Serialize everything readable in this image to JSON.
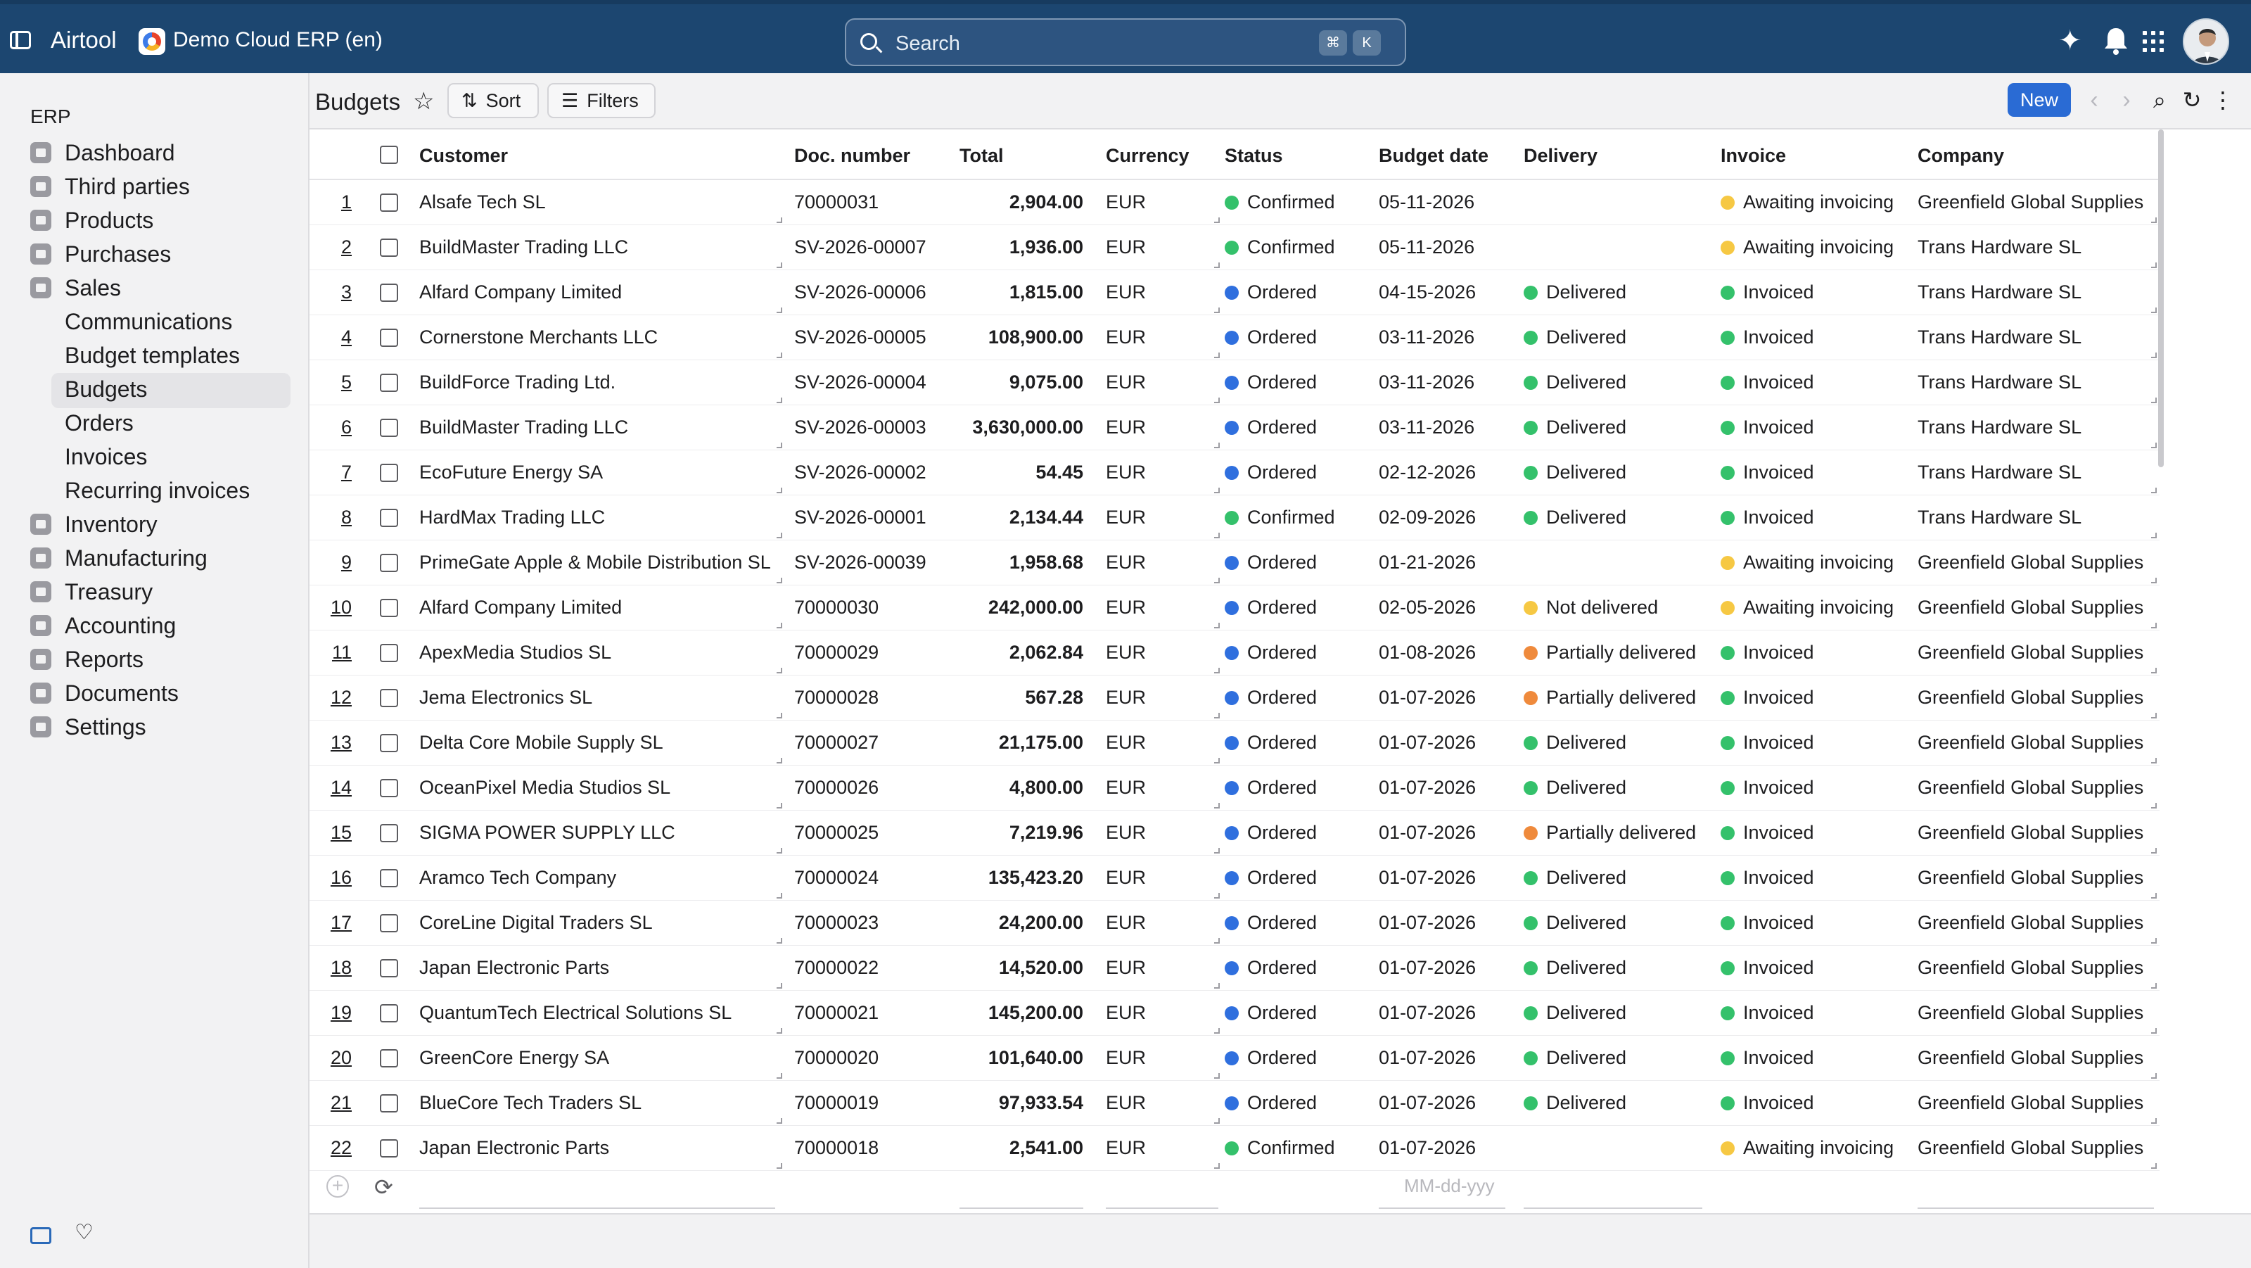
{
  "topbar": {
    "app_name": "Airtool",
    "company": "Demo Cloud ERP (en)",
    "search_placeholder": "Search",
    "shortcut_key1": "⌘",
    "shortcut_key2": "K"
  },
  "sidebar": {
    "section": "ERP",
    "items": [
      {
        "label": "Dashboard",
        "icon": "dashboard-icon"
      },
      {
        "label": "Third parties",
        "icon": "user-icon"
      },
      {
        "label": "Products",
        "icon": "box-icon"
      },
      {
        "label": "Purchases",
        "icon": "cart-icon"
      },
      {
        "label": "Sales",
        "icon": "sales-icon"
      }
    ],
    "sales_subitems": [
      "Communications",
      "Budget templates",
      "Budgets",
      "Orders",
      "Invoices",
      "Recurring invoices"
    ],
    "items_after": [
      {
        "label": "Inventory",
        "icon": "inventory-icon"
      },
      {
        "label": "Manufacturing",
        "icon": "factory-icon"
      },
      {
        "label": "Treasury",
        "icon": "bank-icon"
      },
      {
        "label": "Accounting",
        "icon": "calculator-icon"
      },
      {
        "label": "Reports",
        "icon": "report-icon"
      },
      {
        "label": "Documents",
        "icon": "document-icon"
      },
      {
        "label": "Settings",
        "icon": "gear-icon"
      }
    ],
    "active_item": "Budgets"
  },
  "toolbar": {
    "title": "Budgets",
    "sort_label": "Sort",
    "filters_label": "Filters",
    "new_label": "New"
  },
  "table": {
    "columns": [
      "Customer",
      "Doc. number",
      "Total",
      "Currency",
      "Status",
      "Budget date",
      "Delivery",
      "Invoice",
      "Company"
    ],
    "rows": [
      {
        "n": "1",
        "customer": "Alsafe Tech SL",
        "doc": "70000031",
        "total": "2,904.00",
        "currency": "EUR",
        "status": "Confirmed",
        "date": "05-11-2026",
        "delivery": "",
        "invoice": "Awaiting invoicing",
        "company": "Greenfield Global Supplies"
      },
      {
        "n": "2",
        "customer": "BuildMaster Trading LLC",
        "doc": "SV-2026-00007",
        "total": "1,936.00",
        "currency": "EUR",
        "status": "Confirmed",
        "date": "05-11-2026",
        "delivery": "",
        "invoice": "Awaiting invoicing",
        "company": "Trans Hardware SL"
      },
      {
        "n": "3",
        "customer": "Alfard Company Limited",
        "doc": "SV-2026-00006",
        "total": "1,815.00",
        "currency": "EUR",
        "status": "Ordered",
        "date": "04-15-2026",
        "delivery": "Delivered",
        "invoice": "Invoiced",
        "company": "Trans Hardware SL"
      },
      {
        "n": "4",
        "customer": "Cornerstone Merchants LLC",
        "doc": "SV-2026-00005",
        "total": "108,900.00",
        "currency": "EUR",
        "status": "Ordered",
        "date": "03-11-2026",
        "delivery": "Delivered",
        "invoice": "Invoiced",
        "company": "Trans Hardware SL"
      },
      {
        "n": "5",
        "customer": "BuildForce Trading Ltd.",
        "doc": "SV-2026-00004",
        "total": "9,075.00",
        "currency": "EUR",
        "status": "Ordered",
        "date": "03-11-2026",
        "delivery": "Delivered",
        "invoice": "Invoiced",
        "company": "Trans Hardware SL"
      },
      {
        "n": "6",
        "customer": "BuildMaster Trading LLC",
        "doc": "SV-2026-00003",
        "total": "3,630,000.00",
        "currency": "EUR",
        "status": "Ordered",
        "date": "03-11-2026",
        "delivery": "Delivered",
        "invoice": "Invoiced",
        "company": "Trans Hardware SL"
      },
      {
        "n": "7",
        "customer": "EcoFuture Energy SA",
        "doc": "SV-2026-00002",
        "total": "54.45",
        "currency": "EUR",
        "status": "Ordered",
        "date": "02-12-2026",
        "delivery": "Delivered",
        "invoice": "Invoiced",
        "company": "Trans Hardware SL"
      },
      {
        "n": "8",
        "customer": "HardMax Trading LLC",
        "doc": "SV-2026-00001",
        "total": "2,134.44",
        "currency": "EUR",
        "status": "Confirmed",
        "date": "02-09-2026",
        "delivery": "Delivered",
        "invoice": "Invoiced",
        "company": "Trans Hardware SL"
      },
      {
        "n": "9",
        "customer": "PrimeGate Apple & Mobile Distribution SL",
        "doc": "SV-2026-00039",
        "total": "1,958.68",
        "currency": "EUR",
        "status": "Ordered",
        "date": "01-21-2026",
        "delivery": "",
        "invoice": "Awaiting invoicing",
        "company": "Greenfield Global Supplies"
      },
      {
        "n": "10",
        "customer": "Alfard Company Limited",
        "doc": "70000030",
        "total": "242,000.00",
        "currency": "EUR",
        "status": "Ordered",
        "date": "02-05-2026",
        "delivery": "Not delivered",
        "invoice": "Awaiting invoicing",
        "company": "Greenfield Global Supplies"
      },
      {
        "n": "11",
        "customer": "ApexMedia Studios SL",
        "doc": "70000029",
        "total": "2,062.84",
        "currency": "EUR",
        "status": "Ordered",
        "date": "01-08-2026",
        "delivery": "Partially delivered",
        "invoice": "Invoiced",
        "company": "Greenfield Global Supplies"
      },
      {
        "n": "12",
        "customer": "Jema Electronics SL",
        "doc": "70000028",
        "total": "567.28",
        "currency": "EUR",
        "status": "Ordered",
        "date": "01-07-2026",
        "delivery": "Partially delivered",
        "invoice": "Invoiced",
        "company": "Greenfield Global Supplies"
      },
      {
        "n": "13",
        "customer": "Delta Core Mobile Supply SL",
        "doc": "70000027",
        "total": "21,175.00",
        "currency": "EUR",
        "status": "Ordered",
        "date": "01-07-2026",
        "delivery": "Delivered",
        "invoice": "Invoiced",
        "company": "Greenfield Global Supplies"
      },
      {
        "n": "14",
        "customer": "OceanPixel Media Studios SL",
        "doc": "70000026",
        "total": "4,800.00",
        "currency": "EUR",
        "status": "Ordered",
        "date": "01-07-2026",
        "delivery": "Delivered",
        "invoice": "Invoiced",
        "company": "Greenfield Global Supplies"
      },
      {
        "n": "15",
        "customer": "SIGMA POWER SUPPLY LLC",
        "doc": "70000025",
        "total": "7,219.96",
        "currency": "EUR",
        "status": "Ordered",
        "date": "01-07-2026",
        "delivery": "Partially delivered",
        "invoice": "Invoiced",
        "company": "Greenfield Global Supplies"
      },
      {
        "n": "16",
        "customer": "Aramco Tech Company",
        "doc": "70000024",
        "total": "135,423.20",
        "currency": "EUR",
        "status": "Ordered",
        "date": "01-07-2026",
        "delivery": "Delivered",
        "invoice": "Invoiced",
        "company": "Greenfield Global Supplies"
      },
      {
        "n": "17",
        "customer": "CoreLine Digital Traders SL",
        "doc": "70000023",
        "total": "24,200.00",
        "currency": "EUR",
        "status": "Ordered",
        "date": "01-07-2026",
        "delivery": "Delivered",
        "invoice": "Invoiced",
        "company": "Greenfield Global Supplies"
      },
      {
        "n": "18",
        "customer": "Japan Electronic Parts",
        "doc": "70000022",
        "total": "14,520.00",
        "currency": "EUR",
        "status": "Ordered",
        "date": "01-07-2026",
        "delivery": "Delivered",
        "invoice": "Invoiced",
        "company": "Greenfield Global Supplies"
      },
      {
        "n": "19",
        "customer": "QuantumTech Electrical Solutions SL",
        "doc": "70000021",
        "total": "145,200.00",
        "currency": "EUR",
        "status": "Ordered",
        "date": "01-07-2026",
        "delivery": "Delivered",
        "invoice": "Invoiced",
        "company": "Greenfield Global Supplies"
      },
      {
        "n": "20",
        "customer": "GreenCore Energy SA",
        "doc": "70000020",
        "total": "101,640.00",
        "currency": "EUR",
        "status": "Ordered",
        "date": "01-07-2026",
        "delivery": "Delivered",
        "invoice": "Invoiced",
        "company": "Greenfield Global Supplies"
      },
      {
        "n": "21",
        "customer": "BlueCore Tech Traders SL",
        "doc": "70000019",
        "total": "97,933.54",
        "currency": "EUR",
        "status": "Ordered",
        "date": "01-07-2026",
        "delivery": "Delivered",
        "invoice": "Invoiced",
        "company": "Greenfield Global Supplies"
      },
      {
        "n": "22",
        "customer": "Japan Electronic Parts",
        "doc": "70000018",
        "total": "2,541.00",
        "currency": "EUR",
        "status": "Confirmed",
        "date": "01-07-2026",
        "delivery": "",
        "invoice": "Awaiting invoicing",
        "company": "Greenfield Global Supplies"
      }
    ],
    "new_row_date_placeholder": "MM-dd-yyy"
  },
  "status_colors": {
    "Confirmed": "#34c16b",
    "Ordered": "#2f6fde",
    "Delivered": "#34c16b",
    "Not delivered": "#f6c843",
    "Partially delivered": "#ef8a3c",
    "Invoiced": "#34c16b",
    "Awaiting invoicing": "#f6c843"
  }
}
